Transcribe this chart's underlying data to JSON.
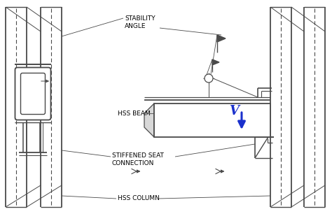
{
  "background_color": "#ffffff",
  "line_color": "#4a4a4a",
  "blue_color": "#1a30cc",
  "figsize": [
    4.74,
    3.06
  ],
  "dpi": 100,
  "labels": {
    "stability_angle": "STABILITY\nANGLE",
    "hss_beam": "HSS BEAM",
    "stiffened_seat": "STIFFENED SEAT\nCONNECTION",
    "hss_column": "HSS COLUMN",
    "V": "V"
  }
}
